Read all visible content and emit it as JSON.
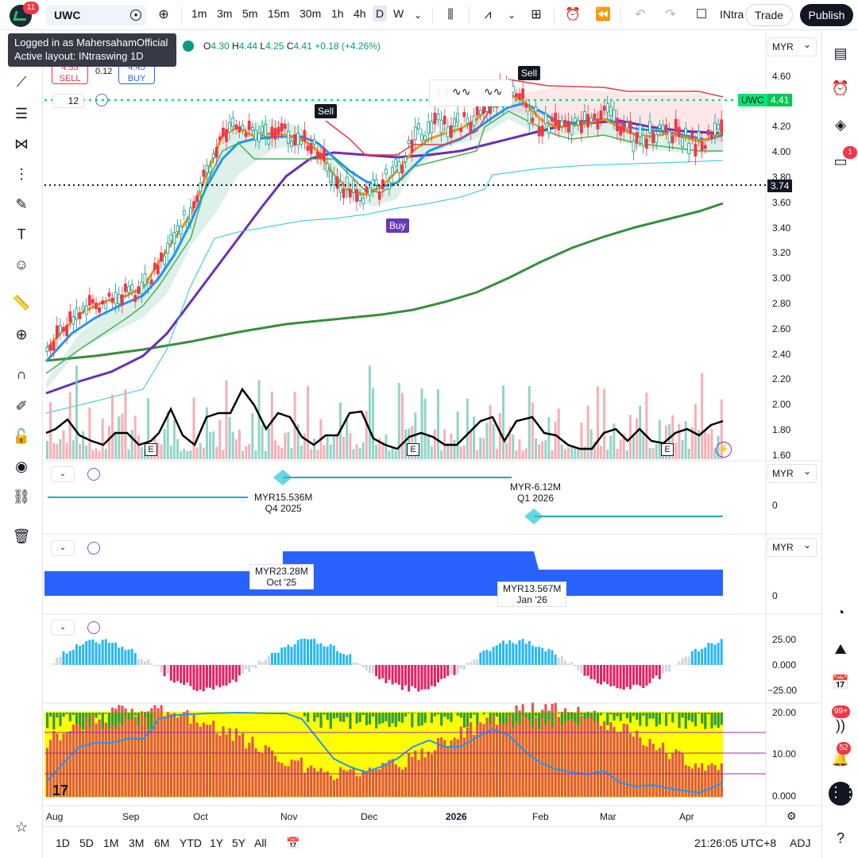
{
  "top": {
    "avatar_badge": "11",
    "symbol": "UWC",
    "timeframes": [
      "1m",
      "3m",
      "5m",
      "15m",
      "30m",
      "1h",
      "4h",
      "D",
      "W"
    ],
    "active_timeframe": "D",
    "layout_name": "INtraswing 1D",
    "trade_label": "Trade",
    "publish_label": "Publish"
  },
  "tooltip": {
    "line1": "Logged in as MahersahamOfficial",
    "line2": "Active layout: INtraswing 1D"
  },
  "legend": {
    "o_label": "O",
    "o": "4.30",
    "h_label": "H",
    "h": "4.44",
    "l_label": "L",
    "l": "4.25",
    "c_label": "C",
    "c": "4.41",
    "change": "+0.18 (+4.26%)"
  },
  "trade_panel": {
    "sell_price": "4.33",
    "sell_label": "SELL",
    "spread": "0.12",
    "buy_price": "4.45",
    "buy_label": "BUY",
    "qty": "12"
  },
  "price_axis": {
    "ticks": [
      "4.60",
      "4.40",
      "4.20",
      "4.00",
      "3.80",
      "3.60",
      "3.40",
      "3.20",
      "3.00",
      "2.80",
      "2.60",
      "2.40",
      "2.20",
      "2.00",
      "1.80",
      "1.60"
    ],
    "last_symbol": "UWC",
    "last_price": "4.41",
    "crosshair_price": "3.74"
  },
  "markers": {
    "sell1": "Sell",
    "sell2": "Sell",
    "buy1": "Buy",
    "earnings": "E"
  },
  "pane1": {
    "currency": "MYR",
    "zero": "0",
    "label_a_value": "MYR15.536M",
    "label_a_period": "Q4 2025",
    "label_b_value": "MYR-6.12M",
    "label_b_period": "Q1 2026"
  },
  "pane2": {
    "currency": "MYR",
    "zero": "0",
    "label_a_value": "MYR23.28M",
    "label_a_period": "Oct '25",
    "label_b_value": "MYR13.567M",
    "label_b_period": "Jan '26"
  },
  "pane3": {
    "ticks": [
      "25.00",
      "0.000",
      "−25.00"
    ]
  },
  "pane4": {
    "ticks": [
      "20.00",
      "10.00",
      "0.000"
    ]
  },
  "time_axis": [
    "Aug",
    "Sep",
    "Oct",
    "Nov",
    "Dec",
    "2026",
    "Feb",
    "Mar",
    "Apr"
  ],
  "main_currency": "MYR",
  "bottom": {
    "ranges": [
      "1D",
      "5D",
      "1M",
      "3M",
      "6M",
      "YTD",
      "1Y",
      "5Y",
      "All"
    ],
    "clock": "21:26:05 UTC+8",
    "adj": "ADJ"
  },
  "right_badges": {
    "ideas": "1",
    "streams": "99+",
    "notifications": "52"
  },
  "colors": {
    "up": "#089981",
    "down": "#f23645",
    "accent": "#2962ff",
    "ema_orange": "#f7931a",
    "ema_blue": "#2196f3",
    "ema_purple": "#6a2fb5",
    "ema_green": "#388e3c"
  }
}
